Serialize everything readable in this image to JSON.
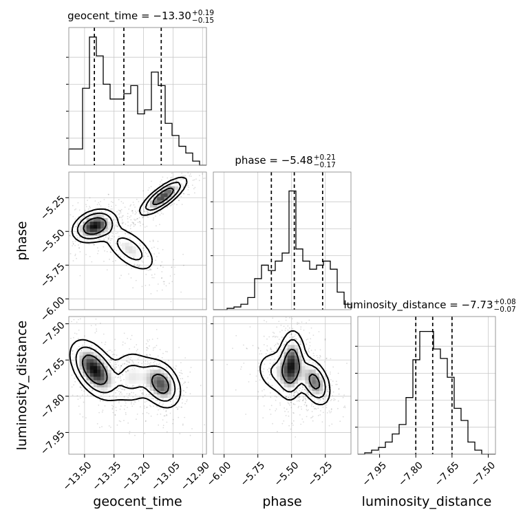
{
  "chart_data": {
    "type": "corner",
    "parameters": [
      "geocent_time",
      "phase",
      "luminosity_distance"
    ],
    "titles": [
      {
        "param": "geocent_time",
        "label": "geocent_time = −13.30",
        "upper": "+0.19",
        "lower": "−0.15"
      },
      {
        "param": "phase",
        "label": "phase = −5.48",
        "upper": "+0.21",
        "lower": "−0.17"
      },
      {
        "param": "luminosity_distance",
        "label": "luminosity_distance = −7.73",
        "upper": "+0.08",
        "lower": "−0.07"
      }
    ],
    "axes": {
      "geocent_time": {
        "range": [
          -13.58,
          -12.88
        ],
        "ticks": [
          -13.5,
          -13.35,
          -13.2,
          -13.05,
          -12.9
        ],
        "tick_labels": [
          "−13.50",
          "−13.35",
          "−13.20",
          "−13.05",
          "−12.90"
        ],
        "quantiles": [
          -13.45,
          -13.3,
          -13.11
        ]
      },
      "phase": {
        "range": [
          -6.08,
          -5.06
        ],
        "ticks": [
          -6.0,
          -5.75,
          -5.5,
          -5.25
        ],
        "tick_labels": [
          "−6.00",
          "−5.75",
          "−5.50",
          "−5.25"
        ],
        "quantiles": [
          -5.65,
          -5.48,
          -5.27
        ]
      },
      "luminosity_distance": {
        "range": [
          -8.04,
          -7.47
        ],
        "ticks": [
          -7.95,
          -7.8,
          -7.65,
          -7.5
        ],
        "tick_labels": [
          "−7.95",
          "−7.80",
          "−7.65",
          "−7.50"
        ],
        "quantiles": [
          -7.8,
          -7.73,
          -7.65
        ]
      }
    },
    "histograms": {
      "geocent_time": {
        "edges": [
          -13.58,
          -13.545,
          -13.51,
          -13.475,
          -13.44,
          -13.405,
          -13.37,
          -13.335,
          -13.3,
          -13.265,
          -13.23,
          -13.195,
          -13.16,
          -13.125,
          -13.09,
          -13.055,
          -13.02,
          -12.985,
          -12.95,
          -12.915,
          -12.88
        ],
        "counts": [
          0.12,
          0.12,
          0.57,
          0.95,
          0.81,
          0.6,
          0.49,
          0.49,
          0.53,
          0.59,
          0.38,
          0.41,
          0.69,
          0.59,
          0.31,
          0.22,
          0.14,
          0.09,
          0.03,
          0.0
        ]
      },
      "phase": {
        "edges": [
          -6.08,
          -6.029,
          -5.978,
          -5.927,
          -5.876,
          -5.825,
          -5.774,
          -5.723,
          -5.672,
          -5.621,
          -5.57,
          -5.519,
          -5.468,
          -5.417,
          -5.366,
          -5.315,
          -5.264,
          -5.213,
          -5.162,
          -5.111,
          -5.06
        ],
        "counts": [
          0.0,
          0.0,
          0.01,
          0.02,
          0.04,
          0.09,
          0.23,
          0.33,
          0.29,
          0.36,
          0.42,
          0.88,
          0.45,
          0.36,
          0.3,
          0.33,
          0.36,
          0.3,
          0.13,
          0.04
        ]
      },
      "luminosity_distance": {
        "edges": [
          -8.04,
          -8.0115,
          -7.983,
          -7.9545,
          -7.926,
          -7.8975,
          -7.869,
          -7.8405,
          -7.812,
          -7.7835,
          -7.755,
          -7.7265,
          -7.698,
          -7.6695,
          -7.641,
          -7.6125,
          -7.584,
          -7.5555,
          -7.527,
          -7.4985,
          -7.47
        ],
        "counts": [
          0.0,
          0.01,
          0.03,
          0.05,
          0.09,
          0.15,
          0.22,
          0.42,
          0.7,
          0.91,
          0.91,
          0.78,
          0.71,
          0.57,
          0.34,
          0.25,
          0.09,
          0.03,
          0.0,
          0.0
        ]
      }
    },
    "contours": [
      {
        "x": "geocent_time",
        "y": "phase",
        "modes": [
          {
            "cx": -13.45,
            "cy": -5.46,
            "sx": 0.055,
            "sy": 0.06,
            "rho": 0.3,
            "w": 1.0
          },
          {
            "cx": -13.1,
            "cy": -5.24,
            "sx": 0.06,
            "sy": 0.07,
            "rho": 0.8,
            "w": 0.9
          },
          {
            "cx": -13.27,
            "cy": -5.63,
            "sx": 0.07,
            "sy": 0.09,
            "rho": -0.6,
            "w": 0.45
          }
        ]
      },
      {
        "x": "geocent_time",
        "y": "luminosity_distance",
        "modes": [
          {
            "cx": -13.45,
            "cy": -7.69,
            "sx": 0.06,
            "sy": 0.06,
            "rho": -0.5,
            "w": 1.0
          },
          {
            "cx": -13.11,
            "cy": -7.75,
            "sx": 0.05,
            "sy": 0.05,
            "rho": -0.3,
            "w": 0.8
          },
          {
            "cx": -13.26,
            "cy": -7.72,
            "sx": 0.06,
            "sy": 0.06,
            "rho": 0.0,
            "w": 0.4
          }
        ]
      },
      {
        "x": "phase",
        "y": "luminosity_distance",
        "modes": [
          {
            "cx": -5.5,
            "cy": -7.67,
            "sx": 0.05,
            "sy": 0.07,
            "rho": 0.1,
            "w": 1.0
          },
          {
            "cx": -5.33,
            "cy": -7.74,
            "sx": 0.06,
            "sy": 0.05,
            "rho": -0.4,
            "w": 0.8
          },
          {
            "cx": -5.62,
            "cy": -7.7,
            "sx": 0.08,
            "sy": 0.05,
            "rho": -0.2,
            "w": 0.35
          }
        ]
      }
    ],
    "grid": true
  }
}
